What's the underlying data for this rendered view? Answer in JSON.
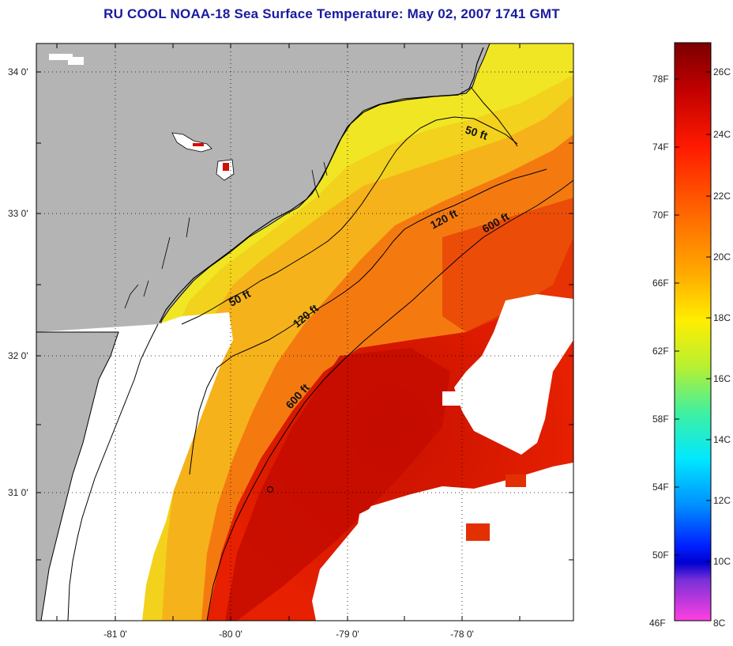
{
  "title": "RU COOL  NOAA-18  Sea Surface Temperature:  May 02, 2007 1741 GMT",
  "lat_labels": [
    "34 0'",
    "33 0'",
    "32 0'",
    "31 0'"
  ],
  "lon_labels": [
    "-81 0'",
    "-80 0'",
    "-79 0'",
    "-78 0'"
  ],
  "contour_labels": {
    "c50_north": "50 ft",
    "c50_south": "50 ft",
    "c120_north": "120 ft",
    "c120_south": "120 ft",
    "c600_north": "600 ft",
    "c600_south": "600 ft"
  },
  "colorbar": {
    "fahrenheit": [
      "78F",
      "74F",
      "70F",
      "66F",
      "62F",
      "58F",
      "54F",
      "50F",
      "46F"
    ],
    "celsius": [
      "26C",
      "24C",
      "22C",
      "20C",
      "18C",
      "16C",
      "14C",
      "12C",
      "10C",
      "8C"
    ]
  },
  "colors": {
    "land": "#b4b4b4",
    "cloud": "#ffffff",
    "title": "#1a1aa0"
  }
}
